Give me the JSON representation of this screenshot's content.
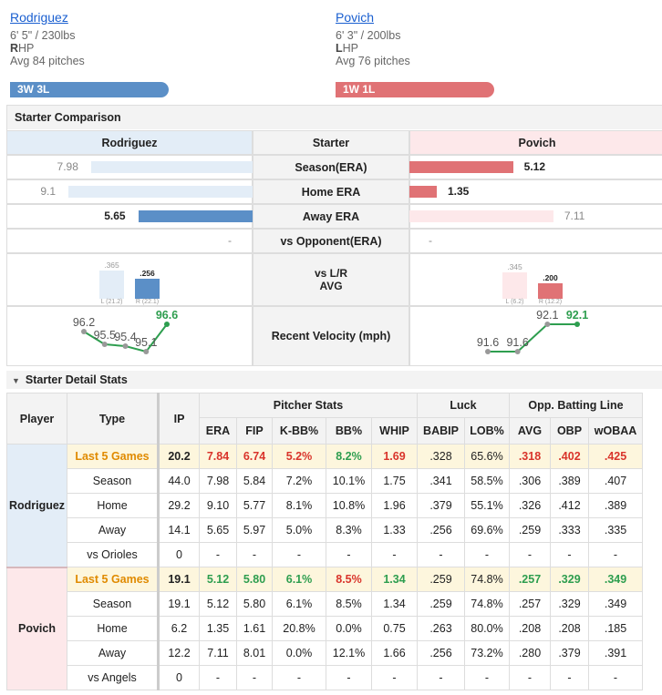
{
  "header": {
    "pitchers": [
      {
        "name": "Rodriguez",
        "build": "6' 5\" / 230lbs",
        "hand": "R",
        "hand_suffix": "HP",
        "pitches": "Avg 84 pitches",
        "record": "3W 3L",
        "color": "#5b8fc7"
      },
      {
        "name": "Povich",
        "build": "6' 3\" / 200lbs",
        "hand": "L",
        "hand_suffix": "HP",
        "pitches": "Avg 76 pitches",
        "record": "1W 1L",
        "color": "#e07275"
      }
    ]
  },
  "comparison": {
    "title": "Starter Comparison",
    "columns": [
      "Rodriguez",
      "Starter",
      "Povich"
    ],
    "era_rows": [
      {
        "label": "Season(ERA)",
        "left": 7.98,
        "right": 5.12,
        "better": "right"
      },
      {
        "label": "Home ERA",
        "left": 9.1,
        "right": 1.35,
        "better": "right"
      },
      {
        "label": "Away ERA",
        "left": 5.65,
        "right": 7.11,
        "better": "left"
      },
      {
        "label": "vs Opponent(ERA)",
        "left": "-",
        "right": "-"
      }
    ],
    "avg": {
      "label": [
        "vs L/R",
        "AVG"
      ],
      "left": [
        {
          "value": 0.365,
          "label": ".365",
          "split": "L (21.2)"
        },
        {
          "value": 0.256,
          "label": ".256",
          "split": "R (22.1)"
        }
      ],
      "right": [
        {
          "value": 0.345,
          "label": ".345",
          "split": "L (6.2)"
        },
        {
          "value": 0.2,
          "label": ".200",
          "split": "R (12.2)"
        }
      ],
      "better": "right"
    },
    "velocity": {
      "label": "Recent Velocity (mph)",
      "left": [
        96.2,
        95.5,
        95.4,
        95.1,
        96.6
      ],
      "right": [
        91.6,
        91.6,
        92.1,
        92.1
      ]
    }
  },
  "details": {
    "title": "Starter Detail Stats",
    "groups": [
      {
        "label": "Pitcher Stats",
        "span": 5
      },
      {
        "label": "Luck",
        "span": 2
      },
      {
        "label": "Opp. Batting Line",
        "span": 3
      }
    ],
    "columns": [
      "Player",
      "Type",
      "IP",
      "ERA",
      "FIP",
      "K-BB%",
      "BB%",
      "WHIP",
      "BABIP",
      "LOB%",
      "AVG",
      "OBP",
      "wOBAA"
    ],
    "players": [
      {
        "name": "Rodriguez",
        "color": "#e3edf7",
        "rows": [
          [
            "Last 5 Games",
            "20.2",
            "7.84",
            "6.74",
            "5.2%",
            "8.2%",
            "1.69",
            ".328",
            "65.6%",
            ".318",
            ".402",
            ".425"
          ],
          [
            "Season",
            "44.0",
            "7.98",
            "5.84",
            "7.2%",
            "10.1%",
            "1.75",
            ".341",
            "58.5%",
            ".306",
            ".389",
            ".407"
          ],
          [
            "Home",
            "29.2",
            "9.10",
            "5.77",
            "8.1%",
            "10.8%",
            "1.96",
            ".379",
            "55.1%",
            ".326",
            ".412",
            ".389"
          ],
          [
            "Away",
            "14.1",
            "5.65",
            "5.97",
            "5.0%",
            "8.3%",
            "1.33",
            ".256",
            "69.6%",
            ".259",
            ".333",
            ".335"
          ],
          [
            "vs Orioles",
            "0",
            "-",
            "-",
            "-",
            "-",
            "-",
            "-",
            "-",
            "-",
            "-",
            "-"
          ]
        ],
        "tones": [
          "bold",
          "bad",
          "bad",
          "bad",
          "good",
          "bad",
          "plain",
          "plain",
          "bad",
          "bad",
          "bad"
        ]
      },
      {
        "name": "Povich",
        "color": "#fde8ea",
        "rows": [
          [
            "Last 5 Games",
            "19.1",
            "5.12",
            "5.80",
            "6.1%",
            "8.5%",
            "1.34",
            ".259",
            "74.8%",
            ".257",
            ".329",
            ".349"
          ],
          [
            "Season",
            "19.1",
            "5.12",
            "5.80",
            "6.1%",
            "8.5%",
            "1.34",
            ".259",
            "74.8%",
            ".257",
            ".329",
            ".349"
          ],
          [
            "Home",
            "6.2",
            "1.35",
            "1.61",
            "20.8%",
            "0.0%",
            "0.75",
            ".263",
            "80.0%",
            ".208",
            ".208",
            ".185"
          ],
          [
            "Away",
            "12.2",
            "7.11",
            "8.01",
            "0.0%",
            "12.1%",
            "1.66",
            ".256",
            "73.2%",
            ".280",
            ".379",
            ".391"
          ],
          [
            "vs Angels",
            "0",
            "-",
            "-",
            "-",
            "-",
            "-",
            "-",
            "-",
            "-",
            "-",
            "-"
          ]
        ],
        "tones": [
          "bold",
          "good",
          "good",
          "good",
          "bad",
          "good",
          "plain",
          "plain",
          "good",
          "good",
          "good"
        ]
      }
    ]
  }
}
